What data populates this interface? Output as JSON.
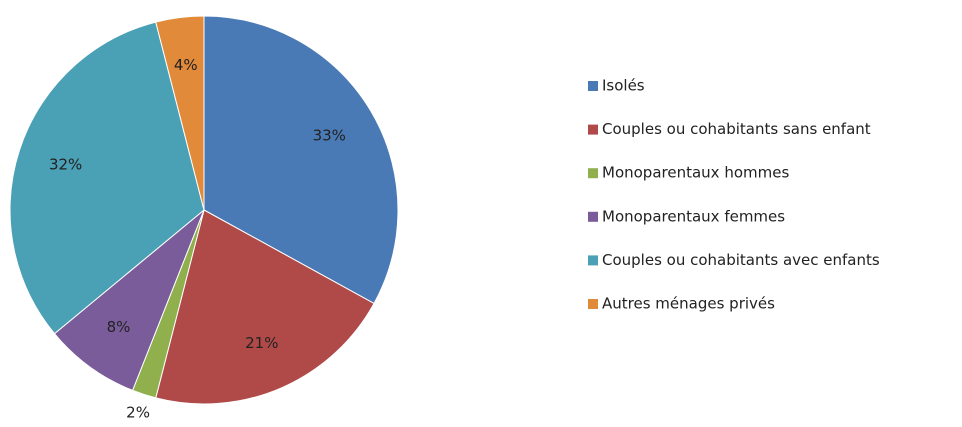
{
  "chart_data": {
    "type": "pie",
    "categories": [
      "Isolés",
      "Couples ou cohabitants sans enfant",
      "Monoparentaux hommes",
      "Monoparentaux femmes",
      "Couples ou cohabitants avec enfants",
      "Autres ménages privés"
    ],
    "values": [
      33,
      21,
      2,
      8,
      32,
      4
    ],
    "value_labels": [
      "33%",
      "21%",
      "2%",
      "8%",
      "32%",
      "4%"
    ],
    "colors": [
      "#4a7ab5",
      "#b04a48",
      "#8fb04d",
      "#7a5c9a",
      "#4aa0b5",
      "#e08a3a"
    ],
    "legend": "right"
  }
}
